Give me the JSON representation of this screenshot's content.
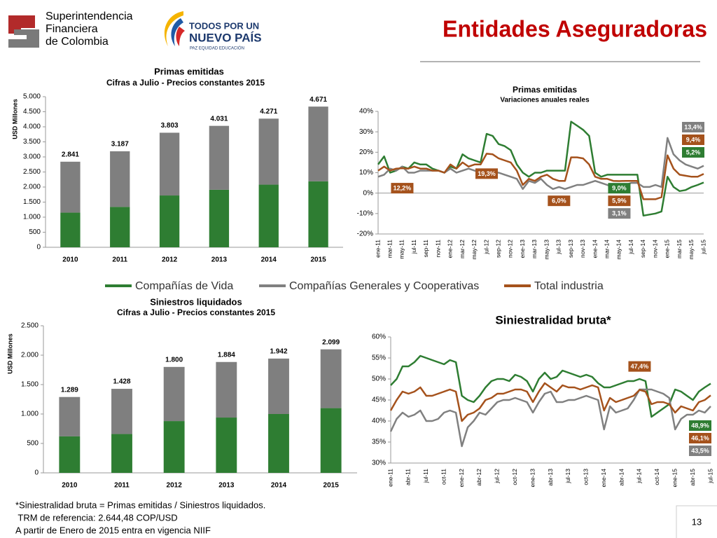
{
  "header": {
    "org_lines": [
      "Superintendencia",
      "Financiera",
      "de Colombia"
    ],
    "logo_lines": [
      "TODOS POR UN",
      "NUEVO PAÍS"
    ],
    "logo_tagline": "PAZ  EQUIDAD  EDUCACIÓN",
    "title": "Entidades Aseguradoras"
  },
  "footnotes": [
    "*Siniestralidad bruta = Primas emitidas / Siniestros liquidados.",
    " TRM de referencia: 2.644,48 COP/USD",
    "A partir de Enero de 2015 entra en vigencia NIIF"
  ],
  "page_number": "13",
  "chart_data": [
    {
      "type": "bar",
      "title": "Primas emitidas",
      "subtitle": "Cifras a Julio - Precios constantes 2015",
      "y_label": "USD Millones",
      "categories": [
        "2010",
        "2011",
        "2012",
        "2013",
        "2014",
        "2015"
      ],
      "series": [
        {
          "color": "#2e7d32",
          "values": [
            1150,
            1340,
            1720,
            1910,
            2080,
            2190
          ]
        },
        {
          "color": "#7f7f7f",
          "values": [
            1691,
            1847,
            2083,
            2121,
            2191,
            2481
          ]
        }
      ],
      "totals": {
        "values": [
          2841,
          3187,
          3803,
          4031,
          4271,
          4671
        ],
        "value_labels": [
          "2.841",
          "3.187",
          "3.803",
          "4.031",
          "4.271",
          "4.671"
        ]
      },
      "ylim": [
        0,
        5000
      ],
      "yticks": [
        0,
        500,
        {
          "value": 1000,
          "label": "1.000"
        },
        {
          "value": 1500,
          "label": "1.500"
        },
        {
          "value": 2000,
          "label": "2.000"
        },
        {
          "value": 2500,
          "label": "2.500"
        },
        {
          "value": 3000,
          "label": "3.000"
        },
        {
          "value": 3500,
          "label": "3.500"
        },
        {
          "value": 4000,
          "label": "4.000"
        },
        {
          "value": 4500,
          "label": "4.500"
        },
        {
          "value": 5000,
          "label": "5.000"
        }
      ],
      "grid": false
    },
    {
      "type": "line",
      "title": "Primas emitidas",
      "subtitle": "Variaciones anuales reales",
      "categories": [
        "ene-11",
        null,
        "mar-11",
        null,
        "may-11",
        null,
        "jul-11",
        null,
        "sep-11",
        null,
        "nov-11",
        null,
        "ene-12",
        null,
        "mar-12",
        null,
        "may-12",
        null,
        "jul-12",
        null,
        "sep-12",
        null,
        "nov-12",
        null,
        "ene-13",
        null,
        "mar-13",
        null,
        "may-13",
        null,
        "jul-13",
        null,
        "sep-13",
        null,
        "nov-13",
        null,
        "ene-14",
        null,
        "mar-14",
        null,
        "may-14",
        null,
        "jul-14",
        null,
        "sep-14",
        null,
        "nov-14",
        null,
        "ene-15",
        null,
        "mar-15",
        null,
        "may-15",
        null,
        "jul-15"
      ],
      "series": [
        {
          "name": "Compañías de Vida",
          "color": "#2e7d32",
          "values": [
            14,
            18,
            10,
            11,
            13,
            12,
            15,
            14,
            14,
            12,
            11,
            10,
            13,
            12,
            19,
            17,
            16,
            15,
            29,
            28,
            24,
            23,
            21,
            14,
            10,
            8,
            10,
            10,
            11,
            11,
            11,
            11,
            35,
            33,
            31,
            28,
            10,
            8,
            9,
            9,
            9,
            9,
            9,
            9,
            -11,
            -10.5,
            -10,
            -9,
            8,
            3,
            1,
            1.5,
            3,
            4,
            5.2
          ],
          "value_labels": [
            null,
            null,
            null,
            null,
            null,
            null,
            null,
            null,
            null,
            null,
            null,
            null,
            null,
            null,
            null,
            null,
            null,
            null,
            null,
            null,
            null,
            null,
            null,
            null,
            null,
            null,
            null,
            null,
            null,
            null,
            null,
            null,
            null,
            null,
            null,
            null,
            null,
            null,
            null,
            null,
            "9,0%",
            null,
            null,
            null,
            null,
            null,
            null,
            null,
            null,
            null,
            null,
            null,
            null,
            null,
            "5,2%"
          ]
        },
        {
          "name": "Compañías Generales y Cooperativas",
          "color": "#808080",
          "values": [
            8,
            9,
            12,
            11,
            13,
            10,
            10,
            11,
            11,
            11,
            11,
            10,
            12,
            10,
            11,
            12,
            11,
            10,
            11,
            10,
            10,
            9,
            8,
            7,
            2,
            6,
            5,
            7,
            4,
            2,
            3,
            2,
            3,
            4,
            4,
            5,
            6,
            5,
            4,
            3,
            3.1,
            4,
            5,
            5,
            3,
            3,
            4,
            3,
            27,
            19,
            16,
            14,
            13,
            12,
            13.4
          ],
          "value_labels": [
            null,
            null,
            null,
            null,
            null,
            null,
            null,
            null,
            null,
            null,
            null,
            null,
            null,
            null,
            null,
            null,
            null,
            null,
            null,
            null,
            null,
            null,
            null,
            null,
            null,
            null,
            null,
            null,
            null,
            null,
            null,
            null,
            null,
            null,
            null,
            null,
            null,
            null,
            null,
            null,
            "3,1%",
            null,
            null,
            null,
            null,
            null,
            null,
            null,
            null,
            null,
            null,
            null,
            null,
            null,
            "13,4%"
          ]
        },
        {
          "name": "Total industria",
          "color": "#a5521c",
          "values": [
            11,
            13,
            11,
            12,
            12.2,
            12,
            13,
            12,
            12,
            11,
            11,
            10,
            14,
            12,
            15,
            13,
            14,
            14,
            19.3,
            19,
            17,
            16,
            15,
            11,
            4,
            7,
            6,
            8,
            9,
            7,
            6,
            6,
            17.5,
            17.5,
            17,
            14,
            8,
            7,
            7,
            6,
            5.9,
            6,
            6,
            6,
            -3,
            -3,
            -3,
            -2,
            18.5,
            12,
            9,
            8.5,
            8,
            8,
            9.4
          ],
          "value_labels": [
            null,
            null,
            null,
            null,
            "12,2%",
            null,
            null,
            null,
            null,
            null,
            null,
            null,
            null,
            null,
            null,
            null,
            null,
            null,
            "19,3%",
            null,
            null,
            null,
            null,
            null,
            null,
            null,
            null,
            null,
            null,
            null,
            "6,0%",
            null,
            null,
            null,
            null,
            null,
            null,
            null,
            null,
            null,
            "5,9%",
            null,
            null,
            null,
            null,
            null,
            null,
            null,
            null,
            null,
            null,
            null,
            null,
            null,
            "9,4%"
          ]
        }
      ],
      "ylim": [
        -20,
        40
      ],
      "yticks": [
        {
          "value": -20,
          "label": "-20%"
        },
        {
          "value": -10,
          "label": "-10%"
        },
        {
          "value": 0,
          "label": "0%"
        },
        {
          "value": 10,
          "label": "10%"
        },
        {
          "value": 20,
          "label": "20%"
        },
        {
          "value": 30,
          "label": "30%"
        },
        {
          "value": 40,
          "label": "40%"
        }
      ],
      "grid": false
    },
    {
      "type": "bar",
      "title": "Siniestros liquidados",
      "subtitle": "Cifras a Julio - Precios constantes 2015",
      "y_label": "USD Millones",
      "categories": [
        "2010",
        "2011",
        "2012",
        "2013",
        "2014",
        "2015"
      ],
      "series": [
        {
          "color": "#2e7d32",
          "values": [
            620,
            660,
            880,
            940,
            1000,
            1100
          ]
        },
        {
          "color": "#7f7f7f",
          "values": [
            669,
            768,
            920,
            944,
            942,
            999
          ]
        }
      ],
      "totals": {
        "values": [
          1289,
          1428,
          1800,
          1884,
          1942,
          2099
        ],
        "value_labels": [
          "1.289",
          "1.428",
          "1.800",
          "1.884",
          "1.942",
          "2.099"
        ]
      },
      "ylim": [
        0,
        2500
      ],
      "yticks": [
        0,
        500,
        {
          "value": 1000,
          "label": "1.000"
        },
        {
          "value": 1500,
          "label": "1.500"
        },
        {
          "value": 2000,
          "label": "2.000"
        },
        {
          "value": 2500,
          "label": "2.500"
        }
      ],
      "grid": false
    },
    {
      "type": "line",
      "title": "Siniestralidad bruta*",
      "categories": [
        "ene-11",
        null,
        null,
        "abr-11",
        null,
        null,
        "jul-11",
        null,
        null,
        "oct-11",
        null,
        null,
        "ene-12",
        null,
        null,
        "abr-12",
        null,
        null,
        "jul-12",
        null,
        null,
        "oct-12",
        null,
        null,
        "ene-13",
        null,
        null,
        "abr-13",
        null,
        null,
        "jul-13",
        null,
        null,
        "oct-13",
        null,
        null,
        "ene-14",
        null,
        null,
        "abr-14",
        null,
        null,
        "jul-14",
        null,
        null,
        "oct-14",
        null,
        null,
        "ene-15",
        null,
        null,
        "abr-15",
        null,
        null,
        "jul-15"
      ],
      "series": [
        {
          "color": "#2e7d32",
          "values": [
            48.5,
            50,
            53,
            53,
            54,
            55.5,
            55,
            54.5,
            54,
            53.5,
            54.5,
            54,
            46,
            45,
            44.5,
            46,
            48,
            49.5,
            50,
            50,
            49.5,
            51,
            50.5,
            49.5,
            47,
            50,
            51.5,
            50,
            50.5,
            52,
            51.5,
            51,
            50.5,
            51,
            50.5,
            49,
            48,
            48,
            48.5,
            49,
            49.5,
            49.5,
            50,
            49.5,
            41,
            42,
            43,
            44,
            47.5,
            47,
            46,
            45,
            47,
            48,
            48.9
          ],
          "value_labels": [
            null,
            null,
            null,
            null,
            null,
            null,
            null,
            null,
            null,
            null,
            null,
            null,
            null,
            null,
            null,
            null,
            null,
            null,
            null,
            null,
            null,
            null,
            null,
            null,
            null,
            null,
            null,
            null,
            null,
            null,
            null,
            null,
            null,
            null,
            null,
            null,
            null,
            null,
            null,
            null,
            null,
            null,
            null,
            null,
            null,
            null,
            null,
            null,
            null,
            null,
            null,
            null,
            null,
            null,
            "48,9%"
          ]
        },
        {
          "color": "#808080",
          "values": [
            37.5,
            40.5,
            42,
            41,
            41.5,
            42.5,
            40,
            40,
            40.5,
            42,
            42.5,
            42,
            34,
            38.5,
            40,
            42,
            41.5,
            43,
            44.5,
            45,
            45,
            45.5,
            45,
            44.5,
            42,
            44.5,
            46.5,
            47,
            44.5,
            44.5,
            45,
            45,
            45.5,
            46,
            45.5,
            45,
            38,
            43.5,
            42,
            42.5,
            43,
            45,
            47.5,
            47.5,
            47.5,
            47,
            46.5,
            45.5,
            38,
            40.5,
            41.5,
            41.5,
            42.5,
            42,
            43.5
          ],
          "value_labels": [
            null,
            null,
            null,
            null,
            null,
            null,
            null,
            null,
            null,
            null,
            null,
            null,
            null,
            null,
            null,
            null,
            null,
            null,
            null,
            null,
            null,
            null,
            null,
            null,
            null,
            null,
            null,
            null,
            null,
            null,
            null,
            null,
            null,
            null,
            null,
            null,
            null,
            null,
            null,
            null,
            null,
            null,
            null,
            null,
            null,
            null,
            null,
            null,
            null,
            null,
            null,
            null,
            null,
            null,
            "43,5%"
          ]
        },
        {
          "color": "#a5521c",
          "values": [
            42.5,
            45,
            47,
            46.5,
            47,
            48,
            46,
            46,
            46.5,
            47,
            47.5,
            47,
            40,
            41.5,
            42,
            43,
            45,
            45.5,
            46.5,
            46.5,
            47,
            47.5,
            47.5,
            47,
            44.5,
            47,
            49,
            48,
            47,
            48.5,
            48,
            48,
            47.5,
            48,
            48.5,
            48,
            42.5,
            45.5,
            44.5,
            45,
            45.5,
            46,
            47.4,
            47,
            44,
            44.5,
            44.5,
            44,
            42,
            43.5,
            43,
            42.5,
            44.5,
            45,
            46.1
          ],
          "value_labels": [
            null,
            null,
            null,
            null,
            null,
            null,
            null,
            null,
            null,
            null,
            null,
            null,
            null,
            null,
            null,
            null,
            null,
            null,
            null,
            null,
            null,
            null,
            null,
            null,
            null,
            null,
            null,
            null,
            null,
            null,
            null,
            null,
            null,
            null,
            null,
            null,
            null,
            null,
            null,
            null,
            null,
            null,
            "47,4%",
            null,
            null,
            null,
            null,
            null,
            null,
            null,
            null,
            null,
            null,
            null,
            "46,1%"
          ]
        }
      ],
      "ylim": [
        30,
        60
      ],
      "yticks": [
        {
          "value": 30,
          "label": "30%"
        },
        {
          "value": 35,
          "label": "35%"
        },
        {
          "value": 40,
          "label": "40%"
        },
        {
          "value": 45,
          "label": "45%"
        },
        {
          "value": 50,
          "label": "50%"
        },
        {
          "value": 55,
          "label": "55%"
        },
        {
          "value": 60,
          "label": "60%"
        }
      ],
      "grid": false
    }
  ]
}
